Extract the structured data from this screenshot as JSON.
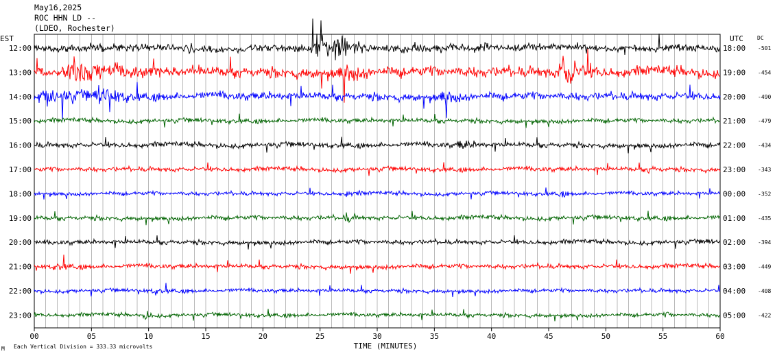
{
  "header": {
    "date": "May16,2025",
    "station": "ROC HHN LD --",
    "network": "(LDEO, Rochester)"
  },
  "left_axis_title": "EST",
  "right_axis_title": "UTC",
  "dc_title": "DC",
  "footer": {
    "scale_note": "Each Vertical Division =  333.33 microvolts",
    "corner_mark": "M"
  },
  "colors": {
    "palette": [
      "#000000",
      "#ff0000",
      "#0000ff",
      "#006400"
    ],
    "grid": "#000000"
  },
  "chart_data": {
    "type": "line",
    "subtype": "helicorder",
    "xlabel": "TIME (MINUTES)",
    "xlim": [
      0,
      60
    ],
    "x_ticks": [
      "00",
      "05",
      "10",
      "15",
      "20",
      "25",
      "30",
      "35",
      "40",
      "45",
      "50",
      "55",
      "60"
    ],
    "rows": [
      {
        "est": "12:00",
        "utc": "18:00",
        "dc": "-501",
        "color": "#000000",
        "amplitude": 0.55,
        "events": [
          {
            "t": 24.7,
            "w": 1.5,
            "a": 4.2
          },
          {
            "t": 26.8,
            "w": 1.2,
            "a": 2.2
          }
        ]
      },
      {
        "est": "13:00",
        "utc": "19:00",
        "dc": "-454",
        "color": "#ff0000",
        "amplitude": 0.8,
        "events": [
          {
            "t": 3.5,
            "w": 1.8,
            "a": 2.8
          },
          {
            "t": 46.3,
            "w": 1.0,
            "a": 3.8
          },
          {
            "t": 27.0,
            "w": 1.0,
            "a": 1.6
          }
        ]
      },
      {
        "est": "14:00",
        "utc": "20:00",
        "dc": "-490",
        "color": "#0000ff",
        "amplitude": 0.6,
        "events": [
          {
            "t": 1.2,
            "w": 2.0,
            "a": 2.0
          },
          {
            "t": 5.8,
            "w": 1.2,
            "a": 2.2
          },
          {
            "t": 35.8,
            "w": 0.7,
            "a": 1.8
          }
        ]
      },
      {
        "est": "15:00",
        "utc": "21:00",
        "dc": "-479",
        "color": "#006400",
        "amplitude": 0.35,
        "events": []
      },
      {
        "est": "16:00",
        "utc": "22:00",
        "dc": "-434",
        "color": "#000000",
        "amplitude": 0.4,
        "events": [
          {
            "t": 37.3,
            "w": 0.8,
            "a": 1.5
          }
        ]
      },
      {
        "est": "17:00",
        "utc": "23:00",
        "dc": "-343",
        "color": "#ff0000",
        "amplitude": 0.35,
        "events": [
          {
            "t": 53.8,
            "w": 0.6,
            "a": 0.9
          }
        ]
      },
      {
        "est": "18:00",
        "utc": "00:00",
        "dc": "-352",
        "color": "#0000ff",
        "amplitude": 0.3,
        "events": [
          {
            "t": 27.4,
            "w": 0.6,
            "a": 1.2
          },
          {
            "t": 46.0,
            "w": 0.4,
            "a": 1.0
          }
        ]
      },
      {
        "est": "19:00",
        "utc": "01:00",
        "dc": "-435",
        "color": "#006400",
        "amplitude": 0.35,
        "events": [
          {
            "t": 27.3,
            "w": 0.5,
            "a": 2.0
          }
        ]
      },
      {
        "est": "20:00",
        "utc": "02:00",
        "dc": "-394",
        "color": "#000000",
        "amplitude": 0.35,
        "events": [
          {
            "t": 58.6,
            "w": 0.4,
            "a": 1.0
          }
        ]
      },
      {
        "est": "21:00",
        "utc": "03:00",
        "dc": "-449",
        "color": "#ff0000",
        "amplitude": 0.35,
        "events": [
          {
            "t": 2.0,
            "w": 0.8,
            "a": 1.2
          }
        ]
      },
      {
        "est": "22:00",
        "utc": "04:00",
        "dc": "-408",
        "color": "#0000ff",
        "amplitude": 0.3,
        "events": [
          {
            "t": 10.5,
            "w": 0.7,
            "a": 1.1
          }
        ]
      },
      {
        "est": "23:00",
        "utc": "05:00",
        "dc": "-422",
        "color": "#006400",
        "amplitude": 0.3,
        "events": [
          {
            "t": 9.8,
            "w": 0.4,
            "a": 2.5
          },
          {
            "t": 55.3,
            "w": 0.3,
            "a": 1.0
          }
        ]
      }
    ]
  }
}
